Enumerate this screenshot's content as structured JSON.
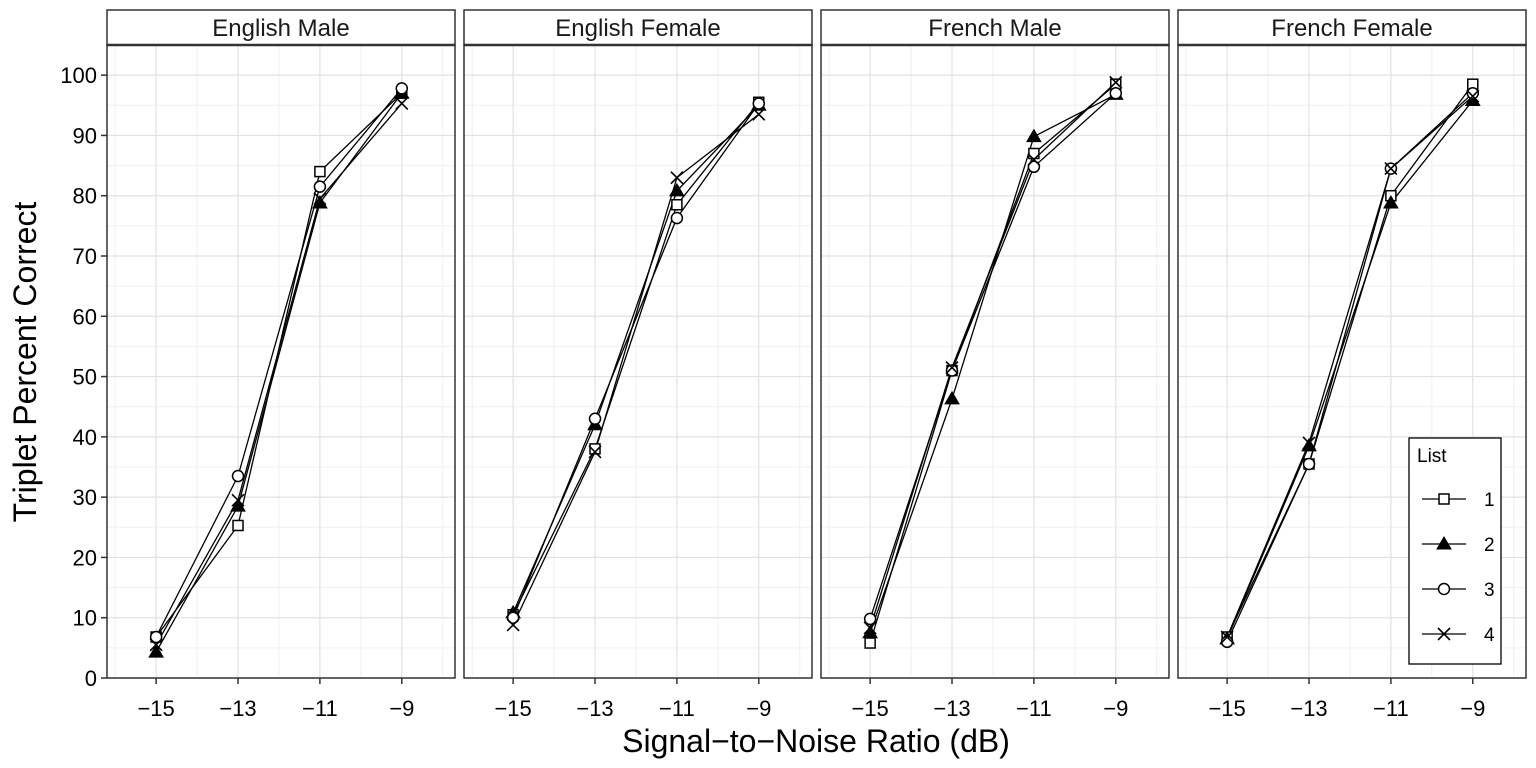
{
  "chart_data": {
    "type": "line",
    "xlabel": "Signal−to−Noise Ratio (dB)",
    "ylabel": "Triplet Percent Correct",
    "x": [
      -15,
      -13,
      -11,
      -9
    ],
    "x_tick_labels": [
      "−15",
      "−13",
      "−11",
      "−9"
    ],
    "xlim": [
      -16.2,
      -7.7
    ],
    "ylim": [
      0,
      105
    ],
    "y_ticks": [
      0,
      10,
      20,
      30,
      40,
      50,
      60,
      70,
      80,
      90,
      100
    ],
    "grid": true,
    "legend": {
      "title": "List",
      "placement": "inside-bottom-right of last panel",
      "entries": [
        {
          "label": "1",
          "marker": "open-square"
        },
        {
          "label": "2",
          "marker": "filled-triangle"
        },
        {
          "label": "3",
          "marker": "open-circle"
        },
        {
          "label": "4",
          "marker": "cross"
        }
      ]
    },
    "panels": [
      {
        "title": "English Male",
        "series": [
          {
            "name": "1",
            "values": [
              6.8,
              25.3,
              84.0,
              97.0
            ]
          },
          {
            "name": "2",
            "values": [
              4.3,
              28.5,
              78.8,
              97.0
            ]
          },
          {
            "name": "3",
            "values": [
              6.8,
              33.5,
              81.5,
              97.8
            ]
          },
          {
            "name": "4",
            "values": [
              5.5,
              29.5,
              79.5,
              95.3
            ]
          }
        ]
      },
      {
        "title": "English Female",
        "series": [
          {
            "name": "1",
            "values": [
              10.5,
              38.0,
              78.5,
              95.5
            ]
          },
          {
            "name": "2",
            "values": [
              10.8,
              42.0,
              80.8,
              95.0
            ]
          },
          {
            "name": "3",
            "values": [
              10.0,
              43.0,
              76.3,
              95.3
            ]
          },
          {
            "name": "4",
            "values": [
              8.8,
              37.5,
              83.0,
              93.5
            ]
          }
        ]
      },
      {
        "title": "French Male",
        "series": [
          {
            "name": "1",
            "values": [
              5.8,
              51.0,
              87.0,
              98.5
            ]
          },
          {
            "name": "2",
            "values": [
              7.5,
              46.3,
              89.8,
              96.8
            ]
          },
          {
            "name": "3",
            "values": [
              9.8,
              51.0,
              84.8,
              97.0
            ]
          },
          {
            "name": "4",
            "values": [
              8.3,
              51.5,
              86.0,
              98.8
            ]
          }
        ]
      },
      {
        "title": "French Female",
        "series": [
          {
            "name": "1",
            "values": [
              6.8,
              35.5,
              80.0,
              98.5
            ]
          },
          {
            "name": "2",
            "values": [
              6.5,
              38.5,
              78.8,
              95.8
            ]
          },
          {
            "name": "3",
            "values": [
              6.0,
              35.5,
              84.5,
              97.0
            ]
          },
          {
            "name": "4",
            "values": [
              6.8,
              39.0,
              84.5,
              96.5
            ]
          }
        ]
      }
    ]
  }
}
